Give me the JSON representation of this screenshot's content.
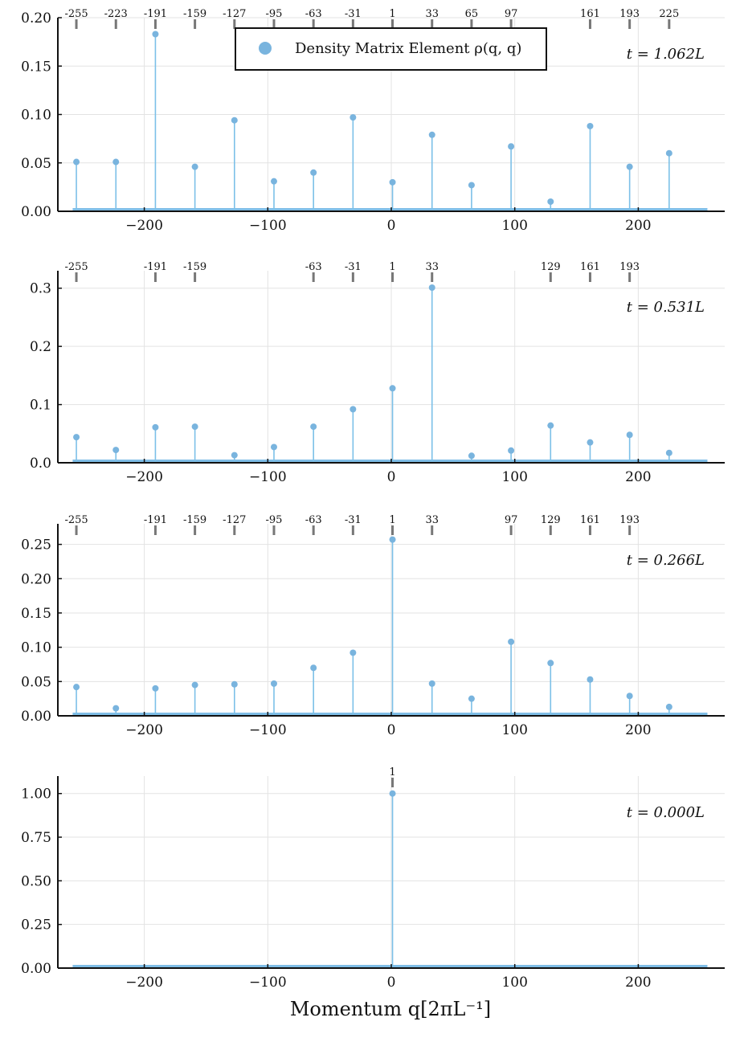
{
  "chart_data": {
    "type": "stem",
    "xlabel": "Momentum q[2πL⁻¹]",
    "xlim": [
      -270,
      270
    ],
    "xticks": [
      -200,
      -100,
      0,
      100,
      200
    ],
    "xtick_labels": [
      "−200",
      "−100",
      "0",
      "100",
      "200"
    ],
    "legend": {
      "label": "Density Matrix Element ρ(q, q)",
      "location": "top-center (first panel)"
    },
    "colors": {
      "stem": "#7cc0e8",
      "marker": "#79b4de",
      "baseline": "#7fbde6",
      "grid": "#e3e3e3",
      "axis": "#111111"
    },
    "panels": [
      {
        "time_label": "t = 1.062L",
        "ylim": [
          0,
          0.2
        ],
        "yticks": [
          0,
          0.05,
          0.1,
          0.15,
          0.2
        ],
        "ytick_labels": [
          "0.00",
          "0.05",
          "0.10",
          "0.15",
          "0.20"
        ],
        "top_ticks": [
          -255,
          -223,
          -191,
          -159,
          -127,
          -95,
          -63,
          -31,
          1,
          33,
          65,
          97,
          161,
          193,
          225
        ],
        "top_tick_labels": [
          "-255",
          "-223",
          "-191",
          "-159",
          "-127",
          "-95",
          "-63",
          "-31",
          "1",
          "33",
          "65",
          "97",
          "161",
          "193",
          "225"
        ],
        "x": [
          -255,
          -223,
          -191,
          -159,
          -127,
          -95,
          -63,
          -31,
          1,
          33,
          65,
          97,
          129,
          161,
          193,
          225
        ],
        "y": [
          0.051,
          0.051,
          0.183,
          0.046,
          0.094,
          0.031,
          0.04,
          0.097,
          0.03,
          0.079,
          0.027,
          0.067,
          0.01,
          0.088,
          0.046,
          0.06
        ]
      },
      {
        "time_label": "t = 0.531L",
        "ylim": [
          0,
          0.33
        ],
        "yticks": [
          0,
          0.1,
          0.2,
          0.3
        ],
        "ytick_labels": [
          "0.0",
          "0.1",
          "0.2",
          "0.3"
        ],
        "top_ticks": [
          -255,
          -191,
          -159,
          -63,
          -31,
          1,
          33,
          129,
          161,
          193
        ],
        "top_tick_labels": [
          "-255",
          "-191",
          "-159",
          "-63",
          "-31",
          "1",
          "33",
          "129",
          "161",
          "193"
        ],
        "x": [
          -255,
          -223,
          -191,
          -159,
          -127,
          -95,
          -63,
          -31,
          1,
          33,
          65,
          97,
          129,
          161,
          193,
          225
        ],
        "y": [
          0.044,
          0.022,
          0.061,
          0.062,
          0.013,
          0.027,
          0.062,
          0.092,
          0.128,
          0.301,
          0.012,
          0.021,
          0.064,
          0.035,
          0.048,
          0.017
        ]
      },
      {
        "time_label": "t = 0.266L",
        "ylim": [
          0,
          0.28
        ],
        "yticks": [
          0,
          0.05,
          0.1,
          0.15,
          0.2,
          0.25
        ],
        "ytick_labels": [
          "0.00",
          "0.05",
          "0.10",
          "0.15",
          "0.20",
          "0.25"
        ],
        "top_ticks": [
          -255,
          -191,
          -159,
          -127,
          -95,
          -63,
          -31,
          1,
          33,
          97,
          129,
          161,
          193
        ],
        "top_tick_labels": [
          "-255",
          "-191",
          "-159",
          "-127",
          "-95",
          "-63",
          "-31",
          "1",
          "33",
          "97",
          "129",
          "161",
          "193"
        ],
        "x": [
          -255,
          -223,
          -191,
          -159,
          -127,
          -95,
          -63,
          -31,
          1,
          33,
          65,
          97,
          129,
          161,
          193,
          225
        ],
        "y": [
          0.042,
          0.011,
          0.04,
          0.045,
          0.046,
          0.047,
          0.07,
          0.092,
          0.257,
          0.047,
          0.025,
          0.108,
          0.077,
          0.053,
          0.029,
          0.013
        ]
      },
      {
        "time_label": "t = 0.000L",
        "ylim": [
          0,
          1.1
        ],
        "yticks": [
          0,
          0.25,
          0.5,
          0.75,
          1.0
        ],
        "ytick_labels": [
          "0.00",
          "0.25",
          "0.50",
          "0.75",
          "1.00"
        ],
        "top_ticks": [
          1
        ],
        "top_tick_labels": [
          "1"
        ],
        "x": [
          1
        ],
        "y": [
          1.0
        ]
      }
    ]
  }
}
